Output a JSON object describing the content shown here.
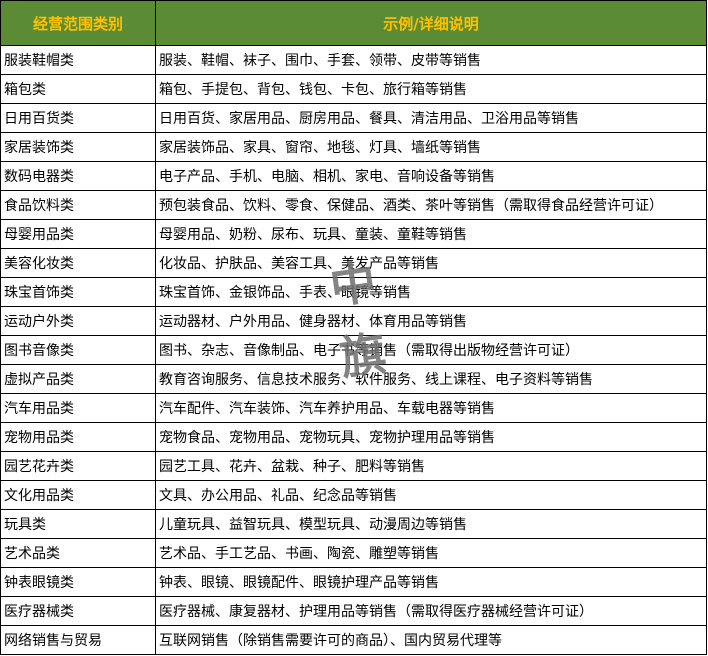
{
  "header": {
    "category": "经营范围类别",
    "description": "示例/详细说明"
  },
  "colors": {
    "header_bg": "#5b8c35",
    "header_text": "#ffc000"
  },
  "rows": [
    {
      "category": "服装鞋帽类",
      "description": "服装、鞋帽、袜子、围巾、手套、领带、皮带等销售"
    },
    {
      "category": "箱包类",
      "description": "箱包、手提包、背包、钱包、卡包、旅行箱等销售"
    },
    {
      "category": "日用百货类",
      "description": "日用百货、家居用品、厨房用品、餐具、清洁用品、卫浴用品等销售"
    },
    {
      "category": "家居装饰类",
      "description": "家居装饰品、家具、窗帘、地毯、灯具、墙纸等销售"
    },
    {
      "category": "数码电器类",
      "description": "电子产品、手机、电脑、相机、家电、音响设备等销售"
    },
    {
      "category": "食品饮料类",
      "description": "预包装食品、饮料、零食、保健品、酒类、茶叶等销售（需取得食品经营许可证）"
    },
    {
      "category": "母婴用品类",
      "description": "母婴用品、奶粉、尿布、玩具、童装、童鞋等销售"
    },
    {
      "category": "美容化妆类",
      "description": "化妆品、护肤品、美容工具、美发产品等销售"
    },
    {
      "category": "珠宝首饰类",
      "description": "珠宝首饰、金银饰品、手表、眼镜等销售"
    },
    {
      "category": "运动户外类",
      "description": "运动器材、户外用品、健身器材、体育用品等销售"
    },
    {
      "category": "图书音像类",
      "description": "图书、杂志、音像制品、电子书等销售（需取得出版物经营许可证）"
    },
    {
      "category": "虚拟产品类",
      "description": "教育咨询服务、信息技术服务、软件服务、线上课程、电子资料等销售"
    },
    {
      "category": "汽车用品类",
      "description": "汽车配件、汽车装饰、汽车养护用品、车载电器等销售"
    },
    {
      "category": "宠物用品类",
      "description": "宠物食品、宠物用品、宠物玩具、宠物护理用品等销售"
    },
    {
      "category": "园艺花卉类",
      "description": "园艺工具、花卉、盆栽、种子、肥料等销售"
    },
    {
      "category": "文化用品类",
      "description": "文具、办公用品、礼品、纪念品等销售"
    },
    {
      "category": "玩具类",
      "description": "儿童玩具、益智玩具、模型玩具、动漫周边等销售"
    },
    {
      "category": "艺术品类",
      "description": "艺术品、手工艺品、书画、陶瓷、雕塑等销售"
    },
    {
      "category": "钟表眼镜类",
      "description": "钟表、眼镜、眼镜配件、眼镜护理产品等销售"
    },
    {
      "category": "医疗器械类",
      "description": "医疗器械、康复器材、护理用品等销售（需取得医疗器械经营许可证）"
    },
    {
      "category": "网络销售与贸易",
      "description": "互联网销售（除销售需要许可的商品）、国内贸易代理等"
    }
  ],
  "watermark": {
    "char1": "中",
    "char2": "旗"
  }
}
